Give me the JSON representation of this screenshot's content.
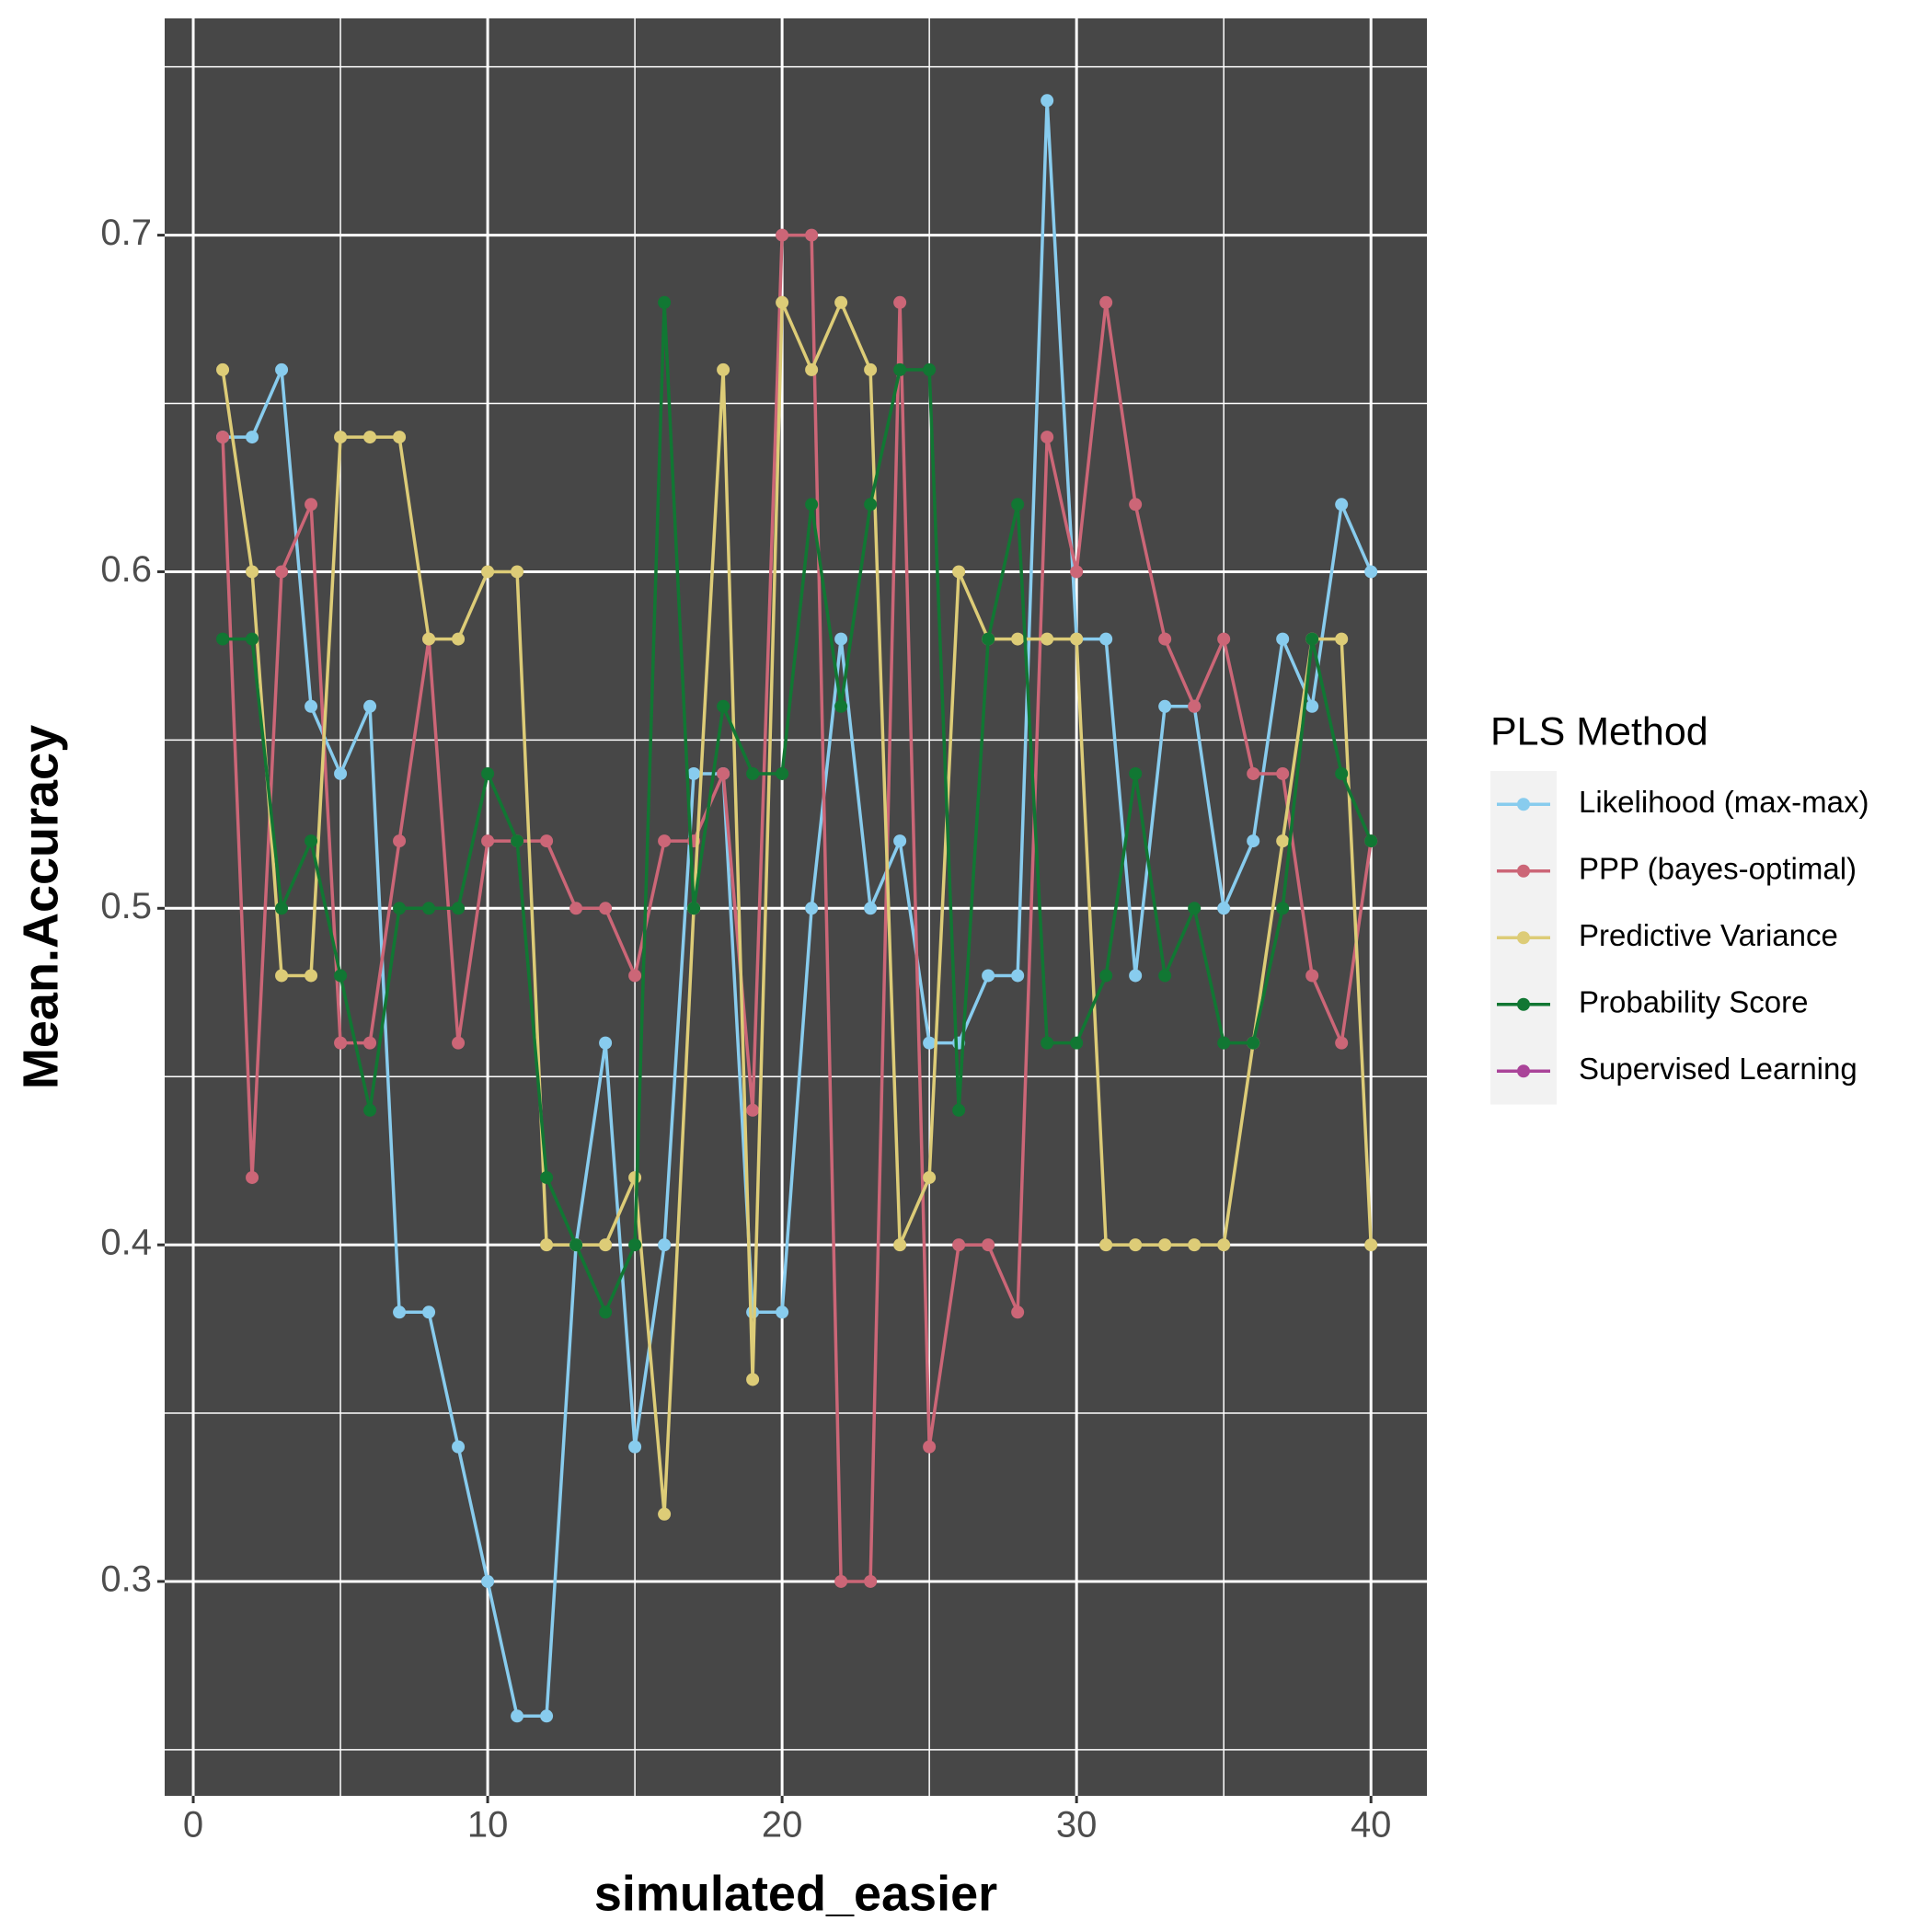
{
  "chart_data": {
    "type": "line",
    "x_label": "simulated_easier",
    "y_label": "Mean.Accuracy",
    "legend_title": "PLS Method",
    "legend": "right",
    "grid": true,
    "x": [
      1,
      2,
      3,
      4,
      5,
      6,
      7,
      8,
      9,
      10,
      11,
      12,
      13,
      14,
      15,
      16,
      17,
      18,
      19,
      20,
      21,
      22,
      23,
      24,
      25,
      26,
      27,
      28,
      29,
      30,
      31,
      32,
      33,
      34,
      35,
      36,
      37,
      38,
      39,
      40
    ],
    "xlim": [
      -0.97,
      41.9
    ],
    "xticks": [
      0,
      10,
      20,
      30,
      40
    ],
    "ylim": [
      0.2363,
      0.7644
    ],
    "yticks": [
      0.3,
      0.4,
      0.5,
      0.6,
      0.7
    ],
    "series": [
      {
        "name": "Likelihood (max-max)",
        "color": "#88CCEE",
        "values": [
          0.64,
          0.64,
          0.66,
          0.56,
          0.54,
          0.56,
          0.38,
          0.38,
          0.34,
          0.3,
          0.26,
          0.26,
          0.4,
          0.46,
          0.34,
          0.4,
          0.54,
          0.54,
          0.38,
          0.38,
          0.5,
          0.58,
          0.5,
          0.52,
          0.46,
          0.46,
          0.48,
          0.48,
          0.74,
          0.58,
          0.58,
          0.48,
          0.56,
          0.56,
          0.5,
          0.52,
          0.58,
          0.56,
          0.62,
          0.6
        ]
      },
      {
        "name": "PPP (bayes-optimal)",
        "color": "#CC6677",
        "values": [
          0.64,
          0.42,
          0.6,
          0.62,
          0.46,
          0.46,
          0.52,
          0.58,
          0.46,
          0.52,
          0.52,
          0.52,
          0.5,
          0.5,
          0.48,
          0.52,
          0.52,
          0.54,
          0.44,
          0.7,
          0.7,
          0.3,
          0.3,
          0.68,
          0.34,
          0.4,
          0.4,
          0.38,
          0.64,
          0.6,
          0.68,
          0.62,
          0.58,
          0.56,
          0.58,
          0.54,
          0.54,
          0.48,
          0.46,
          0.52
        ]
      },
      {
        "name": "Predictive Variance",
        "color": "#DDCC77",
        "values": [
          0.66,
          0.6,
          0.48,
          0.48,
          0.64,
          0.64,
          0.64,
          0.58,
          0.58,
          0.6,
          0.6,
          0.4,
          0.4,
          0.4,
          0.42,
          0.32,
          0.5,
          0.66,
          0.36,
          0.68,
          0.66,
          0.68,
          0.66,
          0.4,
          0.42,
          0.6,
          0.58,
          0.58,
          0.58,
          0.58,
          0.4,
          0.4,
          0.4,
          0.4,
          0.4,
          0.46,
          0.52,
          0.58,
          0.58,
          0.4
        ]
      },
      {
        "name": "Probability Score",
        "color": "#117733",
        "values": [
          0.58,
          0.58,
          0.5,
          0.52,
          0.48,
          0.44,
          0.5,
          0.5,
          0.5,
          0.54,
          0.52,
          0.42,
          0.4,
          0.38,
          0.4,
          0.68,
          0.5,
          0.56,
          0.54,
          0.54,
          0.62,
          0.56,
          0.62,
          0.66,
          0.66,
          0.44,
          0.58,
          0.62,
          0.46,
          0.46,
          0.48,
          0.54,
          0.48,
          0.5,
          0.46,
          0.46,
          0.5,
          0.58,
          0.54,
          0.52
        ]
      },
      {
        "name": "Supervised Learning",
        "color": "#AA4499",
        "values": [
          null,
          null,
          null,
          null,
          null,
          null,
          null,
          null,
          null,
          null,
          null,
          null,
          null,
          null,
          null,
          null,
          null,
          null,
          null,
          null,
          null,
          null,
          null,
          null,
          null,
          null,
          null,
          null,
          null,
          null,
          null,
          null,
          null,
          null,
          null,
          null,
          null,
          null,
          null,
          null
        ]
      }
    ]
  }
}
